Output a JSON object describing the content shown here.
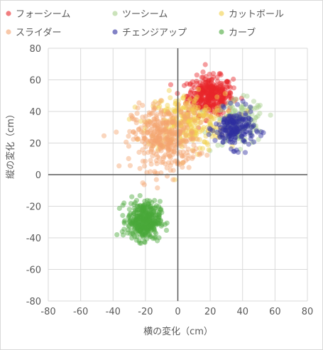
{
  "chart_data": {
    "type": "scatter",
    "xlabel": "横の変化（cm）",
    "ylabel": "縦の変化（cm）",
    "xlim": [
      -80,
      80
    ],
    "ylim": [
      -80,
      80
    ],
    "x_ticks": [
      -80,
      -60,
      -40,
      -20,
      0,
      20,
      40,
      60,
      80
    ],
    "y_ticks": [
      -80,
      -60,
      -40,
      -20,
      0,
      20,
      40,
      60,
      80
    ],
    "x_tick_labels": [
      "-80",
      "-60",
      "-40",
      "-20",
      "0",
      "20",
      "40",
      "60",
      "80"
    ],
    "y_tick_labels": [
      "-80",
      "-60",
      "-40",
      "-20",
      "0",
      "20",
      "40",
      "60",
      "80"
    ],
    "grid": true,
    "legend_position": "top",
    "series": [
      {
        "name": "フォーシーム",
        "color": "#e8262a",
        "cluster": {
          "center": [
            20,
            50
          ],
          "spread": [
            7,
            6
          ],
          "count": 380
        }
      },
      {
        "name": "ツーシーム",
        "color": "#a9d08e",
        "cluster": {
          "center": [
            38,
            33
          ],
          "spread": [
            8,
            7
          ],
          "count": 140
        }
      },
      {
        "name": "カットボール",
        "color": "#f2d04a",
        "cluster": {
          "center": [
            5,
            33
          ],
          "spread": [
            12,
            9
          ],
          "count": 260
        }
      },
      {
        "name": "スライダー",
        "color": "#f4a46f",
        "cluster": {
          "center": [
            -8,
            23
          ],
          "spread": [
            10,
            10
          ],
          "count": 380
        }
      },
      {
        "name": "チェンジアップ",
        "color": "#2e2ea0",
        "cluster": {
          "center": [
            35,
            29
          ],
          "spread": [
            6,
            6
          ],
          "count": 200
        }
      },
      {
        "name": "カーブ",
        "color": "#4aa83a",
        "cluster": {
          "center": [
            -21,
            -29
          ],
          "spread": [
            5,
            6
          ],
          "count": 380
        }
      }
    ]
  }
}
